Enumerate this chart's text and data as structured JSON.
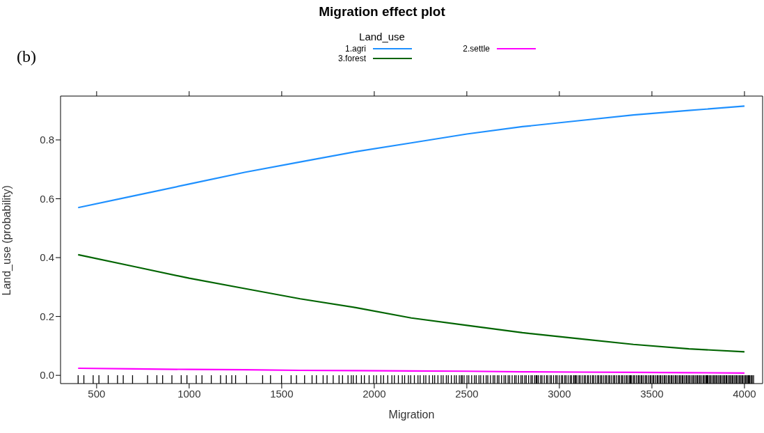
{
  "chart_data": {
    "type": "line",
    "title": "Migration effect plot",
    "legend_title": "Land_use",
    "xlabel": "Migration",
    "ylabel": "Land_use (probability)",
    "annotations": [
      "(b)"
    ],
    "x": [
      400,
      700,
      1000,
      1300,
      1600,
      1900,
      2200,
      2500,
      2800,
      3100,
      3400,
      3700,
      4000
    ],
    "series": [
      {
        "name": "1.agri",
        "color": "#1e90ff",
        "values": [
          0.57,
          0.61,
          0.65,
          0.69,
          0.725,
          0.76,
          0.79,
          0.82,
          0.845,
          0.865,
          0.885,
          0.9,
          0.915
        ]
      },
      {
        "name": "2.settle",
        "color": "#ff00ff",
        "values": [
          0.024,
          0.022,
          0.02,
          0.019,
          0.017,
          0.016,
          0.015,
          0.014,
          0.012,
          0.011,
          0.01,
          0.009,
          0.008
        ]
      },
      {
        "name": "3.forest",
        "color": "#006400",
        "values": [
          0.41,
          0.37,
          0.33,
          0.295,
          0.26,
          0.23,
          0.195,
          0.17,
          0.145,
          0.125,
          0.105,
          0.09,
          0.08
        ]
      }
    ],
    "xlim": [
      305,
      4098
    ],
    "ylim": [
      -0.028,
      0.949
    ],
    "xticks": [
      500,
      1000,
      1500,
      2000,
      2500,
      3000,
      3500,
      4000
    ],
    "yticks": [
      {
        "value": 0,
        "label": "0.0"
      },
      {
        "value": 0.2,
        "label": "0.2"
      },
      {
        "value": 0.4,
        "label": "0.4"
      },
      {
        "value": 0.6,
        "label": "0.6"
      },
      {
        "value": 0.8,
        "label": "0.8"
      }
    ],
    "grid": false,
    "legend": "top",
    "marker": "none",
    "line_style": "solid"
  }
}
